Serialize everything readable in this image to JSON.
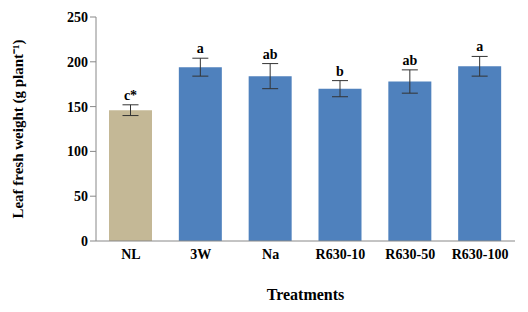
{
  "chart_data": {
    "type": "bar",
    "categories": [
      "NL",
      "3W",
      "Na",
      "R630-10",
      "R630-50",
      "R630-100"
    ],
    "values": [
      146,
      194,
      184,
      170,
      178,
      195
    ],
    "errors": [
      6,
      10,
      14,
      9,
      13,
      11
    ],
    "annotations": [
      "c*",
      "a",
      "ab",
      "b",
      "ab",
      "a"
    ],
    "colors": [
      "#c4b896",
      "#4f81bd",
      "#4f81bd",
      "#4f81bd",
      "#4f81bd",
      "#4f81bd"
    ],
    "x_label": "Treatments",
    "y_label": "Leaf fresh weight (g plant⁻¹)",
    "ylim": [
      0,
      250
    ],
    "yticks": [
      0,
      50,
      100,
      150,
      200,
      250
    ],
    "grid": false
  }
}
